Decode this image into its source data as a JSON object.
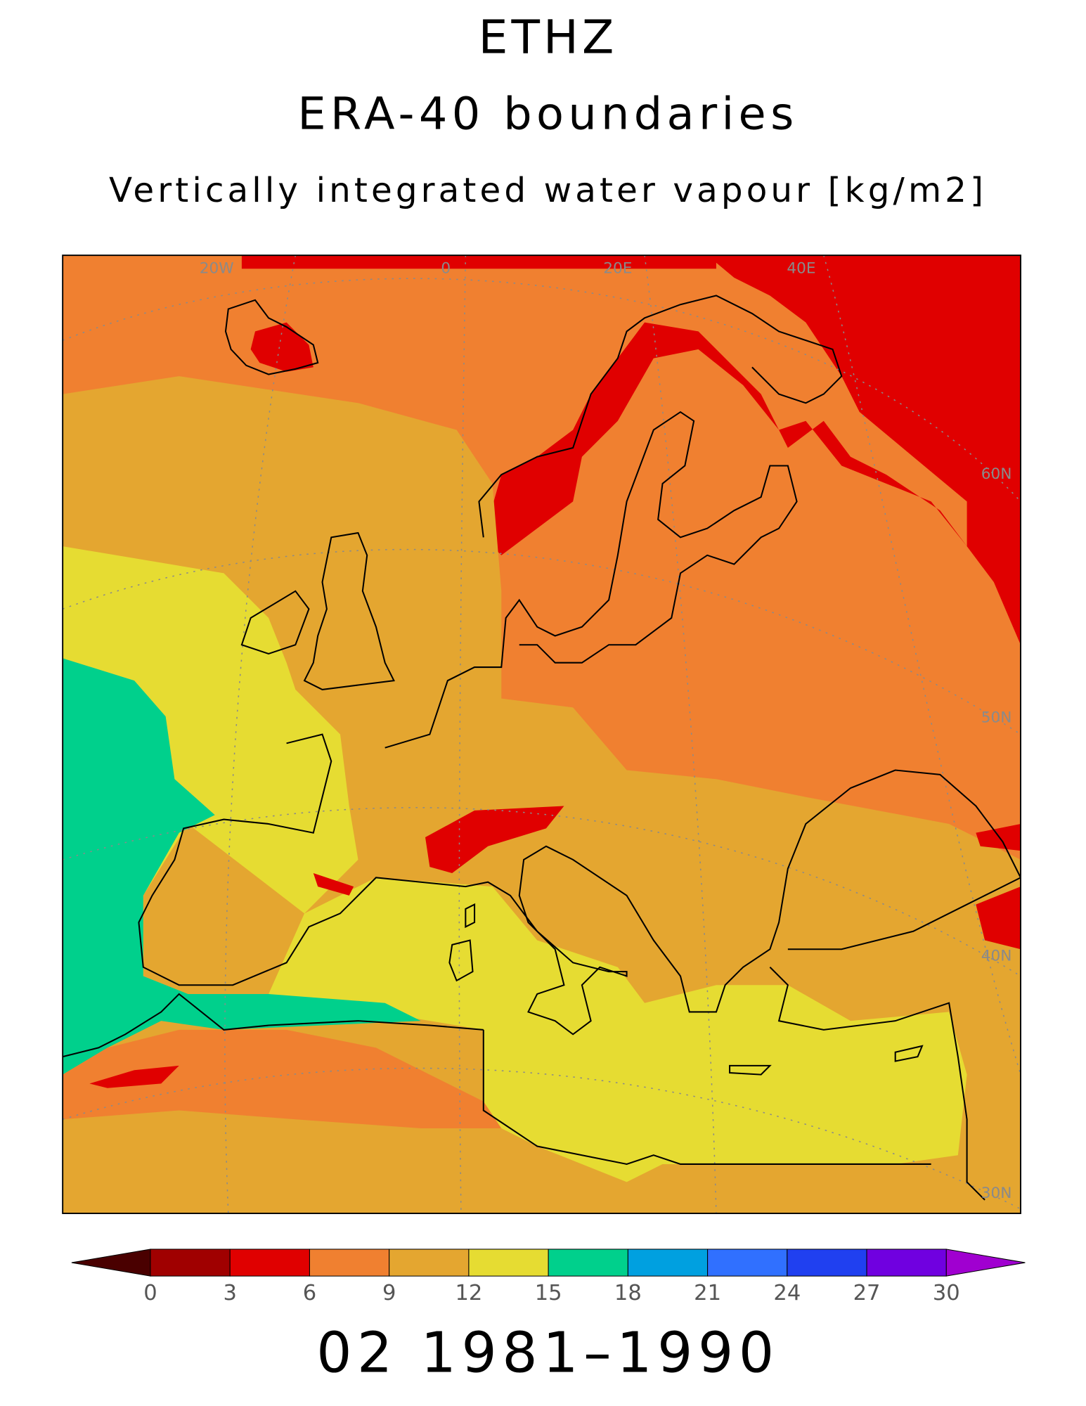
{
  "header": {
    "title": "ETHZ",
    "subtitle": "ERA-40 boundaries",
    "variable": "Vertically integrated water vapour [kg/m2]"
  },
  "map": {
    "meridian_labels": [
      "20W",
      "0",
      "20E",
      "40E"
    ],
    "parallel_labels": [
      "60N",
      "50N",
      "40N",
      "30N"
    ]
  },
  "legend": {
    "ticks": [
      0,
      3,
      6,
      9,
      12,
      15,
      18,
      21,
      24,
      27,
      30
    ],
    "under_color": "#4a0000",
    "colors": [
      "#a00000",
      "#e00000",
      "#f08030",
      "#e4a630",
      "#e6dc32",
      "#00d08c",
      "#00a0e0",
      "#3070ff",
      "#2040f0",
      "#7000e0"
    ],
    "over_color": "#a000d0"
  },
  "footer": {
    "period": "02 1981–1990"
  }
}
